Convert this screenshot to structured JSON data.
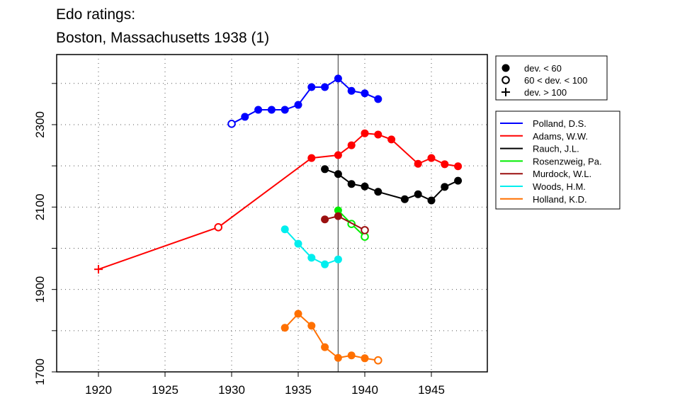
{
  "chart_data": {
    "type": "line",
    "title_line1": "Edo ratings:",
    "title_line2": "Boston, Massachusetts 1938 (1)",
    "xlim": [
      1917,
      1949
    ],
    "ylim": [
      1700,
      2470
    ],
    "x_ticks": [
      1920,
      1925,
      1930,
      1935,
      1940,
      1945
    ],
    "y_ticks": [
      1700,
      1900,
      2100,
      2300
    ],
    "y_grid": [
      1800,
      1900,
      2000,
      2100,
      2200,
      2300,
      2400
    ],
    "reference_year": 1938,
    "marker_legend": [
      {
        "symbol": "filled",
        "label": "dev. < 60"
      },
      {
        "symbol": "open",
        "label": "60 < dev. < 100"
      },
      {
        "symbol": "plus",
        "label": "dev. > 100"
      }
    ],
    "series": [
      {
        "name": "Polland, D.S.",
        "color": "#0000ff",
        "points": [
          [
            1930,
            2302,
            "open"
          ],
          [
            1931,
            2319,
            "filled"
          ],
          [
            1932,
            2336,
            "filled"
          ],
          [
            1933,
            2336,
            "filled"
          ],
          [
            1934,
            2336,
            "filled"
          ],
          [
            1935,
            2348,
            "filled"
          ],
          [
            1936,
            2391,
            "filled"
          ],
          [
            1937,
            2391,
            "filled"
          ],
          [
            1938,
            2412,
            "filled"
          ],
          [
            1939,
            2382,
            "filled"
          ],
          [
            1940,
            2376,
            "filled"
          ],
          [
            1941,
            2362,
            "filled"
          ]
        ]
      },
      {
        "name": "Adams, W.W.",
        "color": "#ff0000",
        "points": [
          [
            1920,
            1949,
            "plus"
          ],
          [
            1929,
            2051,
            "open"
          ],
          [
            1936,
            2219,
            "filled"
          ],
          [
            1938,
            2226,
            "filled"
          ],
          [
            1939,
            2250,
            "filled"
          ],
          [
            1940,
            2279,
            "filled"
          ],
          [
            1941,
            2276,
            "filled"
          ],
          [
            1942,
            2264,
            "filled"
          ],
          [
            1944,
            2205,
            "filled"
          ],
          [
            1945,
            2219,
            "filled"
          ],
          [
            1946,
            2204,
            "filled"
          ],
          [
            1947,
            2199,
            "filled"
          ]
        ]
      },
      {
        "name": "Rauch, J.L.",
        "color": "#000000",
        "points": [
          [
            1937,
            2192,
            "filled"
          ],
          [
            1938,
            2180,
            "filled"
          ],
          [
            1939,
            2156,
            "filled"
          ],
          [
            1940,
            2150,
            "filled"
          ],
          [
            1941,
            2137,
            "filled"
          ],
          [
            1943,
            2119,
            "filled"
          ],
          [
            1944,
            2131,
            "filled"
          ],
          [
            1945,
            2116,
            "filled"
          ],
          [
            1946,
            2149,
            "filled"
          ],
          [
            1947,
            2164,
            "filled"
          ]
        ]
      },
      {
        "name": "Rosenzweig, Pa.",
        "color": "#00ee00",
        "points": [
          [
            1938,
            2092,
            "filled"
          ],
          [
            1939,
            2059,
            "open"
          ],
          [
            1940,
            2028,
            "open"
          ]
        ]
      },
      {
        "name": "Murdock, W.L.",
        "color": "#9b1010",
        "points": [
          [
            1937,
            2070,
            "filled"
          ],
          [
            1938,
            2078,
            "filled"
          ],
          [
            1940,
            2044,
            "open"
          ]
        ]
      },
      {
        "name": "Woods, H.M.",
        "color": "#00eeee",
        "points": [
          [
            1934,
            2046,
            "filled"
          ],
          [
            1935,
            2011,
            "filled"
          ],
          [
            1936,
            1977,
            "filled"
          ],
          [
            1937,
            1961,
            "filled"
          ],
          [
            1938,
            1973,
            "filled"
          ]
        ]
      },
      {
        "name": "Holland, K.D.",
        "color": "#ff7000",
        "points": [
          [
            1934,
            1807,
            "filled"
          ],
          [
            1935,
            1841,
            "filled"
          ],
          [
            1936,
            1812,
            "filled"
          ],
          [
            1937,
            1760,
            "filled"
          ],
          [
            1938,
            1734,
            "filled"
          ],
          [
            1939,
            1740,
            "filled"
          ],
          [
            1940,
            1733,
            "filled"
          ],
          [
            1941,
            1728,
            "open"
          ]
        ]
      }
    ]
  }
}
